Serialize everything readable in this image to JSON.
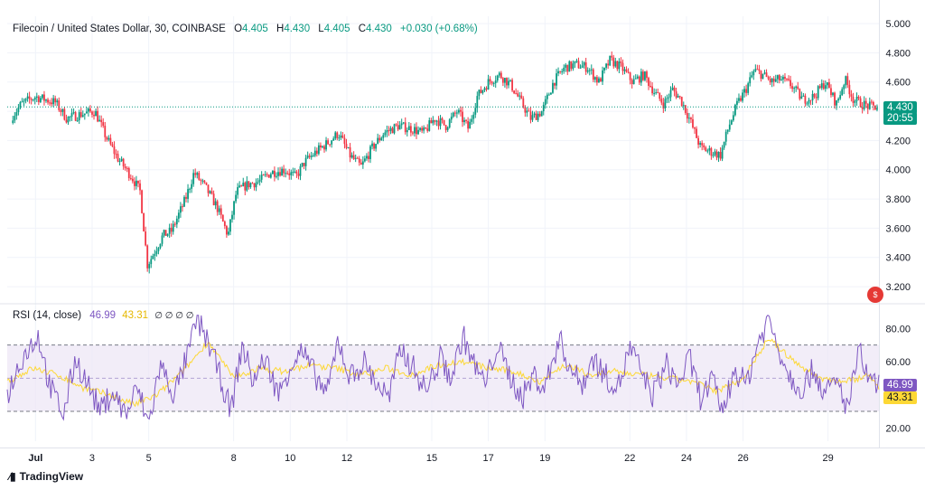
{
  "header": {
    "symbol": "Filecoin / United States Dollar, 30, COINBASE",
    "o_label": "O",
    "o": "4.405",
    "h_label": "H",
    "h": "4.430",
    "l_label": "L",
    "l": "4.405",
    "c_label": "C",
    "c": "4.430",
    "change": "+0.030 (+0.68%)"
  },
  "price_tag": {
    "price": "4.430",
    "countdown": "20:55"
  },
  "rsi_header": {
    "label": "RSI (14, close)",
    "rsi": "46.99",
    "ma": "43.31",
    "na": "∅ ∅ ∅ ∅"
  },
  "rsi_tags": {
    "rsi": "46.99",
    "ma": "43.31"
  },
  "branding": {
    "name": "TradingView",
    "icon": "tradingview-logo-icon"
  },
  "colors": {
    "up": "#089981",
    "down": "#f23645",
    "rsi": "#7e57c2",
    "rsi_ma": "#fdd835",
    "band": "#ede7f6"
  },
  "chart_data": [
    {
      "type": "candlestick",
      "title": "Filecoin / United States Dollar, 30, COINBASE",
      "x_ticks": [
        "Jul",
        "3",
        "5",
        "8",
        "10",
        "12",
        "15",
        "17",
        "19",
        "22",
        "24",
        "26",
        "29"
      ],
      "x_tick_pos": [
        0.5,
        2.5,
        4.5,
        7.5,
        9.5,
        11.5,
        14.5,
        16.5,
        18.5,
        21.5,
        23.5,
        25.5,
        28.5
      ],
      "x_range": [
        -0.5,
        30.3
      ],
      "ylim": [
        3.12,
        5.05
      ],
      "y_ticks": [
        5.0,
        4.8,
        4.6,
        4.4,
        4.2,
        4.0,
        3.8,
        3.6,
        3.4,
        3.2
      ],
      "last_price": 4.43,
      "path_days": [
        -0.5,
        0.0,
        0.5,
        1.2,
        1.6,
        2.1,
        2.6,
        3.0,
        3.4,
        3.9,
        4.2,
        4.45,
        4.6,
        5.0,
        5.3,
        5.8,
        6.1,
        6.5,
        6.9,
        7.3,
        7.6,
        8.0,
        8.4,
        8.8,
        9.3,
        9.7,
        10.0,
        10.4,
        10.8,
        11.2,
        11.6,
        12.0,
        12.4,
        12.8,
        13.3,
        13.8,
        14.2,
        14.6,
        15.0,
        15.4,
        15.8,
        16.1,
        16.5,
        16.9,
        17.3,
        17.6,
        18.0,
        18.4,
        18.8,
        19.2,
        19.6,
        20.0,
        20.4,
        20.8,
        21.2,
        21.6,
        22.0,
        22.4,
        22.7,
        23.0,
        23.3,
        23.6,
        24.0,
        24.4,
        24.7,
        25.0,
        25.3,
        25.6,
        25.9,
        26.2,
        26.5,
        26.8,
        27.2,
        27.6,
        28.0,
        28.4,
        28.8,
        29.1,
        29.4,
        29.7,
        30.0,
        30.3
      ],
      "path_close": [
        4.32,
        4.45,
        4.5,
        4.46,
        4.35,
        4.38,
        4.4,
        4.22,
        4.08,
        3.95,
        3.85,
        3.35,
        3.4,
        3.55,
        3.58,
        3.8,
        3.98,
        3.88,
        3.75,
        3.55,
        3.85,
        3.9,
        3.92,
        3.98,
        4.0,
        3.95,
        4.05,
        4.12,
        4.18,
        4.25,
        4.1,
        4.02,
        4.15,
        4.25,
        4.3,
        4.28,
        4.25,
        4.35,
        4.3,
        4.4,
        4.28,
        4.5,
        4.6,
        4.65,
        4.58,
        4.48,
        4.35,
        4.4,
        4.6,
        4.7,
        4.72,
        4.7,
        4.6,
        4.75,
        4.7,
        4.6,
        4.65,
        4.52,
        4.45,
        4.55,
        4.48,
        4.35,
        4.15,
        4.12,
        4.1,
        4.3,
        4.45,
        4.55,
        4.68,
        4.65,
        4.6,
        4.62,
        4.58,
        4.48,
        4.5,
        4.6,
        4.45,
        4.62,
        4.48,
        4.45,
        4.43,
        4.43
      ]
    },
    {
      "type": "line",
      "title": "RSI (14, close)",
      "ylim": [
        12,
        90
      ],
      "y_ticks": [
        80.0,
        60.0,
        40.0,
        20.0
      ],
      "bands": [
        30,
        50,
        70
      ],
      "series": [
        {
          "name": "RSI",
          "path_days": [
            -0.5,
            0.0,
            0.6,
            1.0,
            1.5,
            1.9,
            2.3,
            2.8,
            3.2,
            3.7,
            4.1,
            4.5,
            4.9,
            5.4,
            5.9,
            6.2,
            6.6,
            7.0,
            7.4,
            7.8,
            8.2,
            8.6,
            9.1,
            9.5,
            9.9,
            10.3,
            10.8,
            11.2,
            11.6,
            12.1,
            12.5,
            13.0,
            13.4,
            13.9,
            14.3,
            14.8,
            15.2,
            15.6,
            16.0,
            16.4,
            16.8,
            17.3,
            17.7,
            18.1,
            18.5,
            19.0,
            19.4,
            19.8,
            20.2,
            20.7,
            21.1,
            21.5,
            21.9,
            22.3,
            22.8,
            23.2,
            23.6,
            24.0,
            24.4,
            24.8,
            25.2,
            25.6,
            26.0,
            26.4,
            26.8,
            27.2,
            27.6,
            28.0,
            28.4,
            28.8,
            29.2,
            29.6,
            30.0,
            30.3
          ],
          "values": [
            40,
            62,
            76,
            45,
            28,
            62,
            48,
            30,
            42,
            28,
            44,
            22,
            58,
            40,
            65,
            86,
            72,
            52,
            30,
            70,
            48,
            62,
            40,
            58,
            66,
            54,
            40,
            74,
            50,
            60,
            48,
            38,
            68,
            55,
            42,
            62,
            50,
            76,
            58,
            46,
            70,
            50,
            38,
            52,
            44,
            74,
            56,
            46,
            62,
            50,
            45,
            68,
            54,
            40,
            58,
            46,
            62,
            38,
            48,
            30,
            56,
            46,
            70,
            86,
            66,
            50,
            44,
            56,
            40,
            48,
            32,
            66,
            46,
            47
          ]
        },
        {
          "name": "RSI-based MA",
          "path_days": [
            -0.5,
            0.4,
            1.3,
            2.2,
            3.1,
            4.0,
            4.8,
            5.7,
            6.6,
            7.5,
            8.4,
            9.3,
            10.2,
            11.1,
            12.0,
            12.9,
            13.8,
            14.7,
            15.6,
            16.5,
            17.4,
            18.3,
            19.2,
            20.1,
            21.0,
            21.9,
            22.8,
            23.7,
            24.6,
            25.5,
            26.4,
            27.3,
            28.2,
            29.1,
            30.0,
            30.3
          ],
          "values": [
            48,
            56,
            52,
            44,
            40,
            34,
            40,
            54,
            72,
            50,
            56,
            54,
            58,
            56,
            52,
            56,
            52,
            58,
            60,
            56,
            54,
            48,
            58,
            52,
            54,
            52,
            50,
            48,
            42,
            50,
            74,
            60,
            50,
            48,
            52,
            43
          ]
        }
      ]
    }
  ]
}
